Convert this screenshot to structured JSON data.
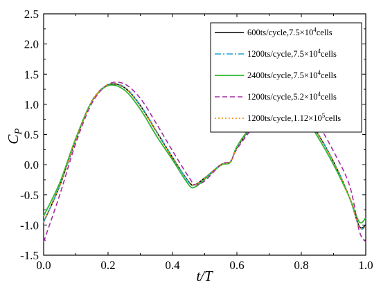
{
  "chart_data": {
    "type": "line",
    "title": "",
    "xlabel": "t/T",
    "ylabel_main": "C",
    "ylabel_sub": "P",
    "xlim": [
      0,
      1
    ],
    "ylim": [
      -1.5,
      2.5
    ],
    "xticks": [
      "0.0",
      "0.2",
      "0.4",
      "0.6",
      "0.8",
      "1.0"
    ],
    "yticks": [
      "-1.5",
      "-1.0",
      "-0.5",
      "0.0",
      "0.5",
      "1.0",
      "1.5",
      "2.0",
      "2.5"
    ],
    "grid": false,
    "legend_position": "top-right",
    "x": [
      0.0,
      0.05,
      0.1,
      0.15,
      0.2,
      0.25,
      0.3,
      0.35,
      0.4,
      0.45,
      0.47,
      0.5,
      0.55,
      0.58,
      0.6,
      0.65,
      0.7,
      0.75,
      0.8,
      0.85,
      0.9,
      0.95,
      0.98,
      1.0
    ],
    "series": [
      {
        "name_main": "600ts/cycle,7.5×10",
        "name_sup": "4",
        "name_tail": "cells",
        "color": "#000000",
        "dash": "",
        "width": 1.6,
        "values": [
          -0.95,
          -0.35,
          0.42,
          1.05,
          1.32,
          1.28,
          0.98,
          0.55,
          0.12,
          -0.28,
          -0.33,
          -0.22,
          0.0,
          0.05,
          0.28,
          0.66,
          0.98,
          1.06,
          0.88,
          0.52,
          0.05,
          -0.55,
          -1.02,
          -1.0
        ]
      },
      {
        "name_main": "1200ts/cycle,7.5×10",
        "name_sup": "4",
        "name_tail": "cells",
        "color": "#1e9fd6",
        "dash": "9,3,2,3",
        "width": 1.6,
        "values": [
          -0.95,
          -0.34,
          0.43,
          1.06,
          1.33,
          1.29,
          0.99,
          0.56,
          0.13,
          -0.29,
          -0.34,
          -0.22,
          0.0,
          0.05,
          0.29,
          0.67,
          0.98,
          1.06,
          0.89,
          0.53,
          0.05,
          -0.56,
          -1.04,
          -1.02
        ]
      },
      {
        "name_main": "2400ts/cycle,7.5×10",
        "name_sup": "4",
        "name_tail": "cells",
        "color": "#2db82d",
        "dash": "",
        "width": 1.8,
        "values": [
          -0.85,
          -0.3,
          0.44,
          1.05,
          1.31,
          1.24,
          0.92,
          0.48,
          0.08,
          -0.33,
          -0.37,
          -0.24,
          -0.01,
          0.04,
          0.3,
          0.68,
          0.98,
          1.05,
          0.86,
          0.47,
          0.0,
          -0.55,
          -0.95,
          -0.88
        ]
      },
      {
        "name_main": "1200ts/cycle,5.2×10",
        "name_sup": "4",
        "name_tail": "cells",
        "color": "#a52aa5",
        "dash": "7,4",
        "width": 1.6,
        "values": [
          -1.28,
          -0.5,
          0.36,
          1.02,
          1.33,
          1.34,
          1.1,
          0.68,
          0.23,
          -0.2,
          -0.33,
          -0.27,
          0.0,
          0.06,
          0.26,
          0.62,
          0.94,
          1.07,
          0.98,
          0.68,
          0.22,
          -0.35,
          -1.1,
          -1.28
        ]
      },
      {
        "name_main": "1200ts/cycle,1.12×10",
        "name_sup": "5",
        "name_tail": "cells",
        "color": "#f0921e",
        "dash": "2,3",
        "width": 1.8,
        "values": [
          -0.96,
          -0.35,
          0.42,
          1.05,
          1.33,
          1.28,
          0.98,
          0.55,
          0.12,
          -0.28,
          -0.33,
          -0.22,
          0.0,
          0.05,
          0.28,
          0.66,
          0.98,
          1.06,
          0.88,
          0.52,
          0.05,
          -0.55,
          -1.03,
          -1.02
        ]
      }
    ]
  }
}
